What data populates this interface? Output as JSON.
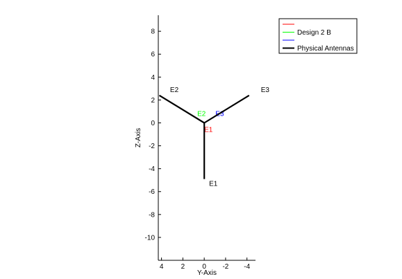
{
  "chart_data": {
    "type": "line",
    "xlabel": "Y-Axis",
    "ylabel": "Z-Axis",
    "xlim": [
      4.3,
      -4.8
    ],
    "ylim": [
      -12,
      9.4
    ],
    "x_reversed": true,
    "x_ticks": [
      4,
      2,
      0,
      -2,
      -4
    ],
    "x_tick_labels": [
      "4",
      "2",
      "0",
      "-2",
      "-4"
    ],
    "y_ticks": [
      8,
      6,
      4,
      2,
      0,
      -2,
      -4,
      -6,
      -8,
      -10
    ],
    "y_tick_labels": [
      "8",
      "6",
      "4",
      "2",
      "0",
      "-2",
      "-4",
      "-6",
      "-8",
      "-10"
    ],
    "grid": false,
    "legend_position": "top-right",
    "series": [
      {
        "name": "",
        "color": "#ff0000",
        "points": [
          [
            0,
            0
          ],
          [
            0,
            -0.7
          ]
        ],
        "labels": [
          {
            "text": "E1",
            "x": 0,
            "y": -0.8
          }
        ]
      },
      {
        "name": "Design 2 B",
        "color": "#00ff00",
        "points": [
          [
            0,
            0
          ],
          [
            0.7,
            0.4
          ]
        ],
        "labels": [
          {
            "text": "E2",
            "x": 0.65,
            "y": 0.6
          }
        ]
      },
      {
        "name": "",
        "color": "#0000ff",
        "points": [
          [
            0,
            0
          ],
          [
            -0.7,
            0.4
          ]
        ],
        "labels": [
          {
            "text": "E3",
            "x": -1.05,
            "y": 0.6
          }
        ]
      },
      {
        "name": "Physical Antennas",
        "color": "#000000",
        "segments": [
          [
            [
              0,
              0
            ],
            [
              0,
              -4.9
            ]
          ],
          [
            [
              0,
              0
            ],
            [
              4.2,
              2.4
            ]
          ],
          [
            [
              0,
              0
            ],
            [
              -4.2,
              2.4
            ]
          ]
        ],
        "labels": [
          {
            "text": "E1",
            "x": -0.45,
            "y": -5.5
          },
          {
            "text": "E2",
            "x": 3.2,
            "y": 2.7
          },
          {
            "text": "E3",
            "x": -5.3,
            "y": 2.7
          }
        ]
      }
    ]
  }
}
